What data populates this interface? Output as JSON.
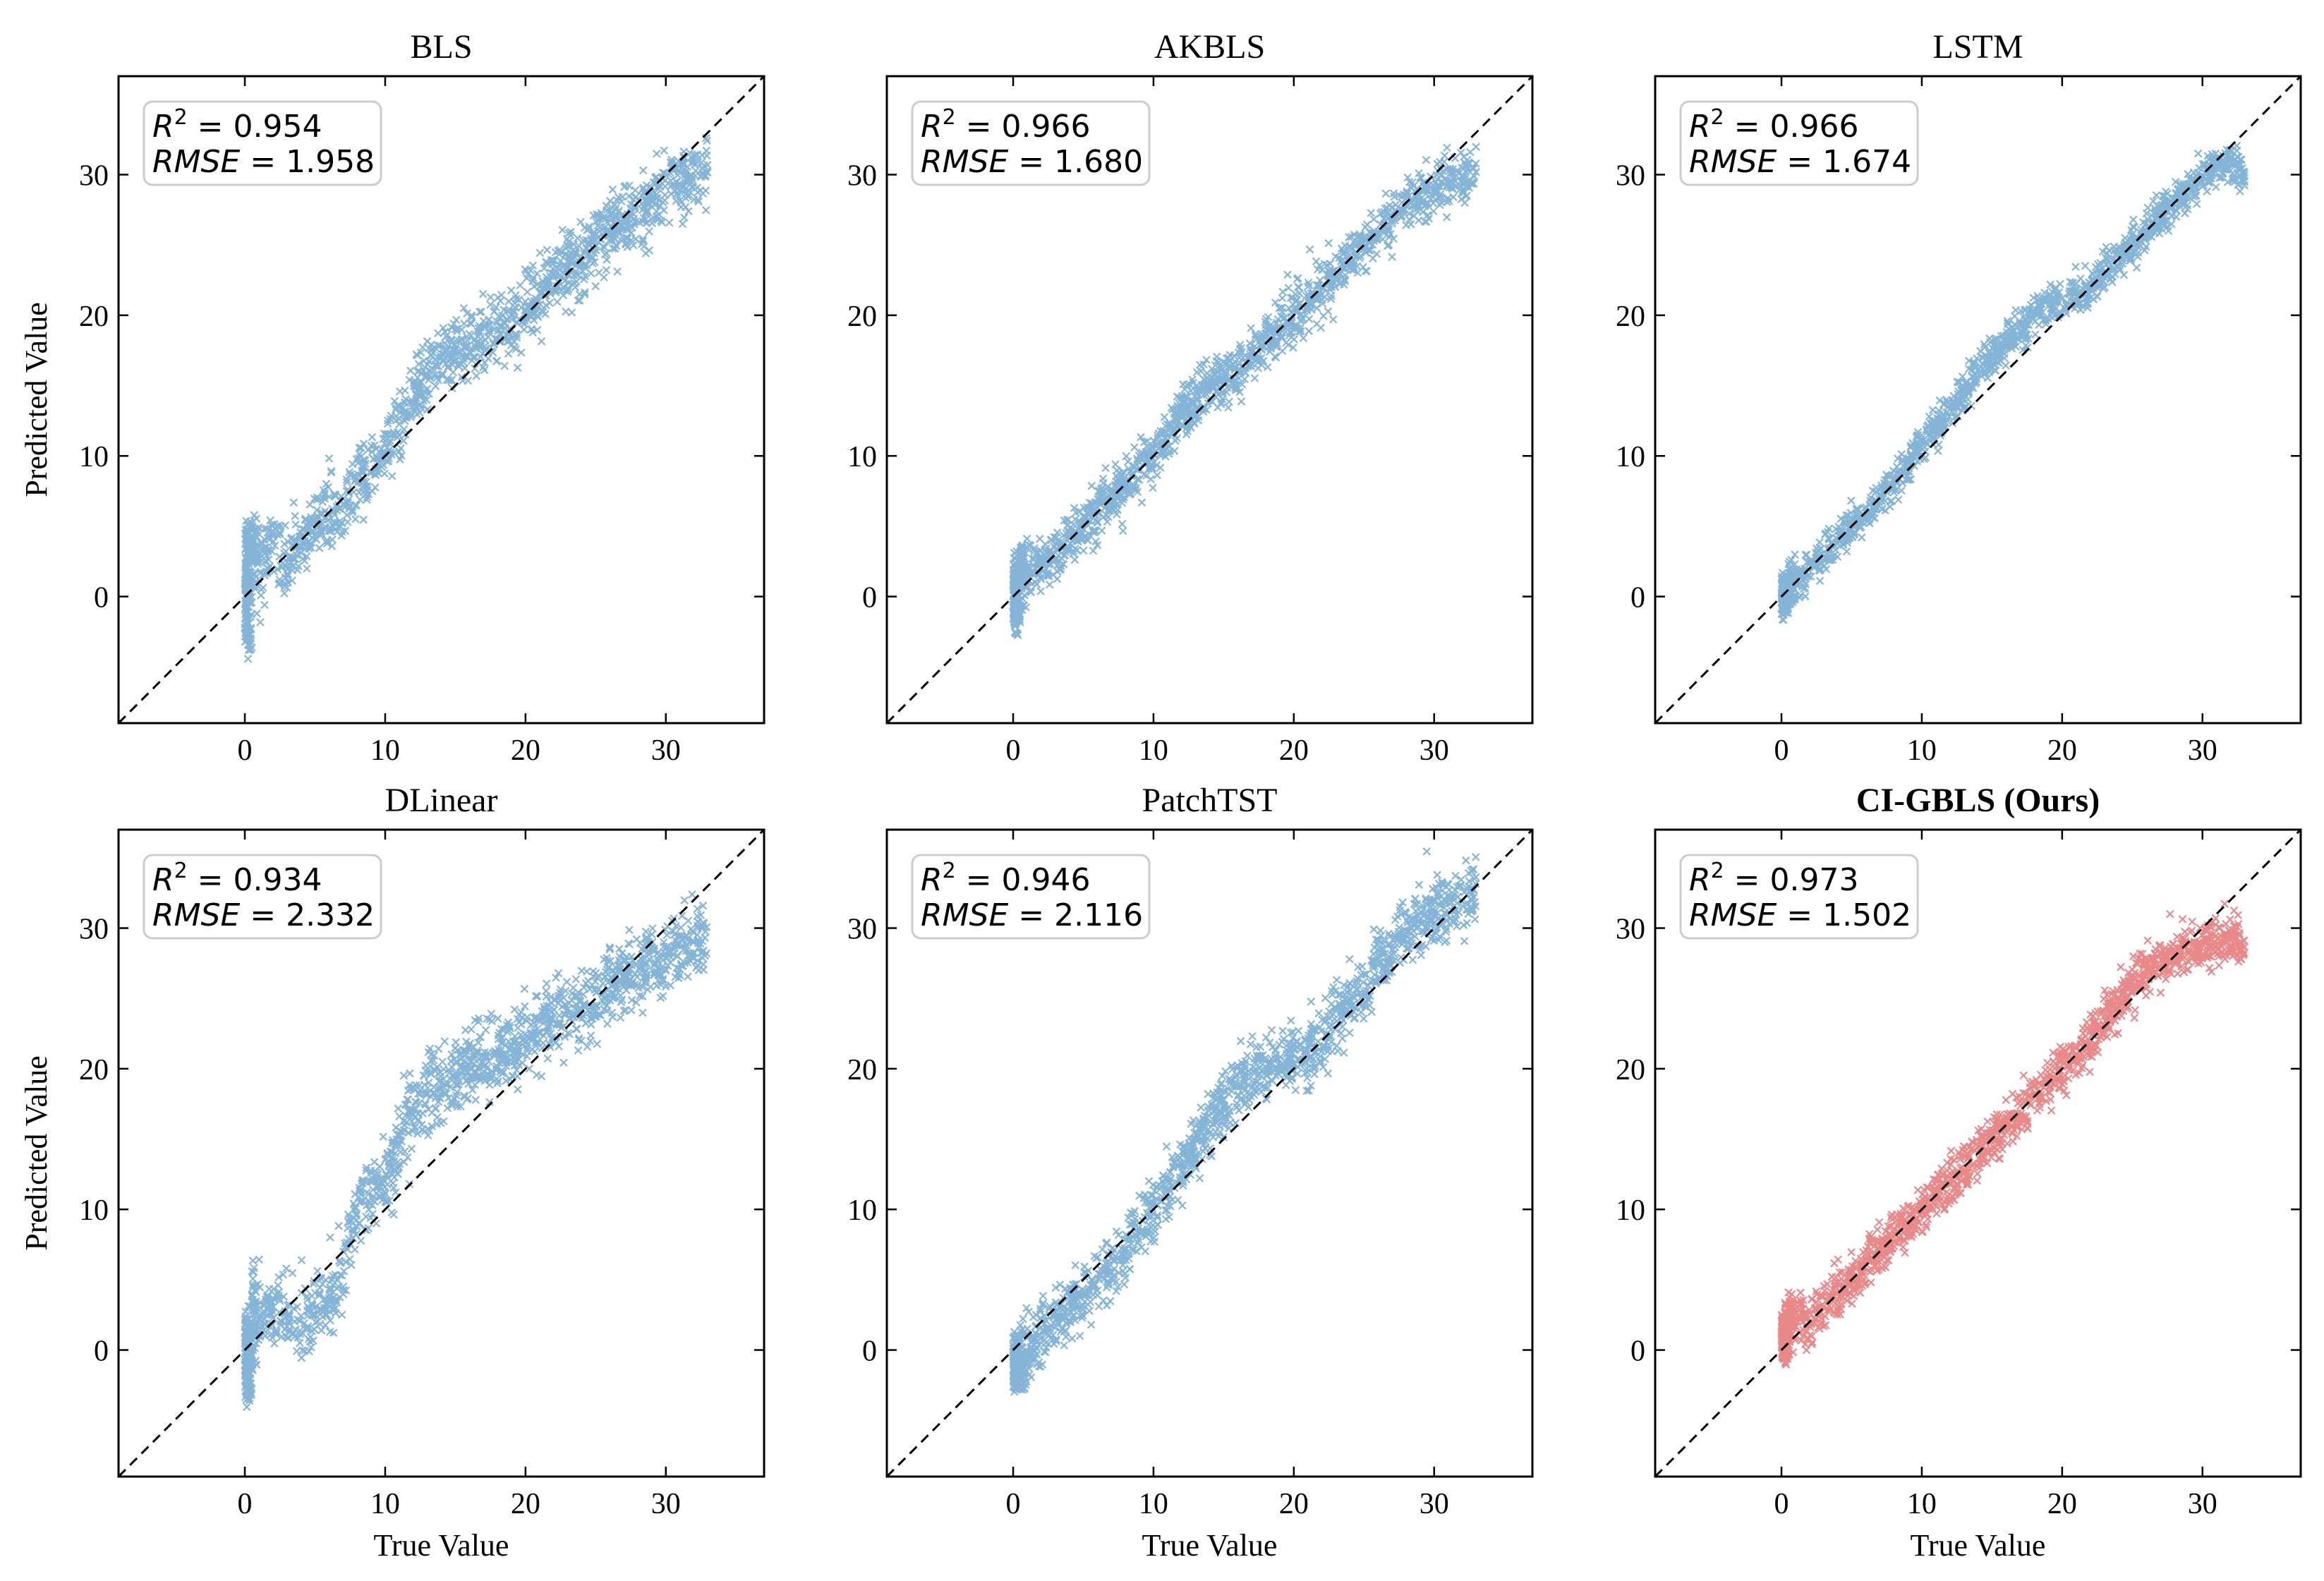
{
  "colors": {
    "default_marker": "#1f77b4",
    "highlight_marker": "#d62728",
    "highlight_title": "#d62728",
    "diagonal": "#000000"
  },
  "chart_data": [
    {
      "type": "scatter",
      "title": "BLS",
      "xlabel": "",
      "ylabel": "Predicted Value",
      "xlim": [
        -9,
        37
      ],
      "ylim": [
        -9,
        37
      ],
      "xticks": [
        0,
        10,
        20,
        30
      ],
      "yticks": [
        0,
        10,
        20,
        30
      ],
      "marker": "x",
      "color": "#1f77b4",
      "highlight": false,
      "stats": {
        "r2_label": "R",
        "r2_exp": "2",
        "r2_value": "0.954",
        "rmse_label": "RMSE",
        "rmse_value": "1.958"
      },
      "x_range": [
        0,
        33
      ],
      "spread": 2.2,
      "x": [
        0,
        0,
        0,
        1,
        2,
        3,
        4,
        5,
        6,
        7,
        8,
        10,
        12,
        14,
        16,
        18,
        20,
        22,
        24,
        26,
        28,
        30,
        32,
        33
      ],
      "y": [
        0,
        -4,
        5,
        2,
        4,
        2,
        4,
        5,
        6,
        6,
        8,
        10,
        14,
        17,
        18,
        19,
        20,
        23,
        24,
        26,
        27,
        29,
        30,
        30
      ]
    },
    {
      "type": "scatter",
      "title": "AKBLS",
      "xlabel": "",
      "ylabel": "",
      "xlim": [
        -9,
        37
      ],
      "ylim": [
        -9,
        37
      ],
      "xticks": [
        0,
        10,
        20,
        30
      ],
      "yticks": [
        0,
        10,
        20,
        30
      ],
      "marker": "x",
      "color": "#1f77b4",
      "highlight": false,
      "stats": {
        "r2_label": "R",
        "r2_exp": "2",
        "r2_value": "0.966",
        "rmse_label": "RMSE",
        "rmse_value": "1.680"
      },
      "x_range": [
        0,
        33
      ],
      "spread": 1.7,
      "x": [
        0,
        0,
        0,
        2,
        4,
        6,
        8,
        10,
        12,
        14,
        16,
        18,
        20,
        22,
        24,
        26,
        28,
        30,
        32,
        33
      ],
      "y": [
        0,
        -2,
        2,
        2,
        4,
        6,
        8,
        10,
        13,
        15,
        16,
        18,
        20,
        22,
        24,
        26,
        28,
        29,
        30,
        30
      ]
    },
    {
      "type": "scatter",
      "title": "LSTM",
      "xlabel": "",
      "ylabel": "",
      "xlim": [
        -9,
        37
      ],
      "ylim": [
        -9,
        37
      ],
      "xticks": [
        0,
        10,
        20,
        30
      ],
      "yticks": [
        0,
        10,
        20,
        30
      ],
      "marker": "x",
      "color": "#1f77b4",
      "highlight": false,
      "stats": {
        "r2_label": "R",
        "r2_exp": "2",
        "r2_value": "0.966",
        "rmse_label": "RMSE",
        "rmse_value": "1.674"
      },
      "x_range": [
        0,
        33
      ],
      "spread": 1.2,
      "x": [
        0,
        2,
        4,
        6,
        8,
        10,
        12,
        14,
        16,
        18,
        20,
        22,
        24,
        26,
        28,
        30,
        32,
        33
      ],
      "y": [
        0,
        2,
        4,
        6,
        8,
        11,
        13,
        16,
        18,
        20,
        21,
        22,
        24,
        26,
        28,
        30,
        31,
        30
      ]
    },
    {
      "type": "scatter",
      "title": "DLinear",
      "xlabel": "True Value",
      "ylabel": "Predicted Value",
      "xlim": [
        -9,
        37
      ],
      "ylim": [
        -9,
        37
      ],
      "xticks": [
        0,
        10,
        20,
        30
      ],
      "yticks": [
        0,
        10,
        20,
        30
      ],
      "marker": "x",
      "color": "#1f77b4",
      "highlight": false,
      "stats": {
        "r2_label": "R",
        "r2_exp": "2",
        "r2_value": "0.934",
        "rmse_label": "RMSE",
        "rmse_value": "2.332"
      },
      "x_range": [
        0,
        33
      ],
      "spread": 2.4,
      "x": [
        0,
        0,
        0,
        2,
        4,
        6,
        8,
        10,
        12,
        14,
        16,
        18,
        20,
        22,
        24,
        26,
        28,
        30,
        32,
        33
      ],
      "y": [
        0,
        -3,
        2,
        3,
        2,
        3,
        10,
        12,
        17,
        19,
        20,
        21,
        22,
        24,
        24,
        26,
        27,
        28,
        29,
        29
      ]
    },
    {
      "type": "scatter",
      "title": "PatchTST",
      "xlabel": "True Value",
      "ylabel": "",
      "xlim": [
        -9,
        37
      ],
      "ylim": [
        -9,
        37
      ],
      "xticks": [
        0,
        10,
        20,
        30
      ],
      "yticks": [
        0,
        10,
        20,
        30
      ],
      "marker": "x",
      "color": "#1f77b4",
      "highlight": false,
      "stats": {
        "r2_label": "R",
        "r2_exp": "2",
        "r2_value": "0.946",
        "rmse_label": "RMSE",
        "rmse_value": "2.116"
      },
      "x_range": [
        0,
        33
      ],
      "spread": 2.0,
      "x": [
        0,
        0,
        2,
        4,
        6,
        8,
        10,
        12,
        14,
        16,
        18,
        20,
        22,
        24,
        26,
        28,
        30,
        32,
        33
      ],
      "y": [
        0,
        -2,
        1,
        3,
        5,
        7,
        10,
        13,
        16,
        19,
        20,
        21,
        22,
        25,
        27,
        30,
        31,
        32,
        33
      ]
    },
    {
      "type": "scatter",
      "title": "CI-GBLS (Ours)",
      "xlabel": "True Value",
      "ylabel": "",
      "xlim": [
        -9,
        37
      ],
      "ylim": [
        -9,
        37
      ],
      "xticks": [
        0,
        10,
        20,
        30
      ],
      "yticks": [
        0,
        10,
        20,
        30
      ],
      "marker": "x",
      "color": "#d62728",
      "highlight": true,
      "stats": {
        "r2_label": "R",
        "r2_exp": "2",
        "r2_value": "0.973",
        "rmse_label": "RMSE",
        "rmse_value": "1.502"
      },
      "x_range": [
        0,
        33
      ],
      "spread": 1.5,
      "x": [
        0,
        0,
        2,
        4,
        6,
        8,
        10,
        12,
        14,
        16,
        18,
        20,
        22,
        24,
        26,
        28,
        30,
        32,
        33
      ],
      "y": [
        0,
        2,
        2,
        4,
        6,
        8,
        10,
        12,
        14,
        16,
        18,
        20,
        22,
        25,
        27,
        28,
        29,
        29,
        29
      ]
    }
  ]
}
